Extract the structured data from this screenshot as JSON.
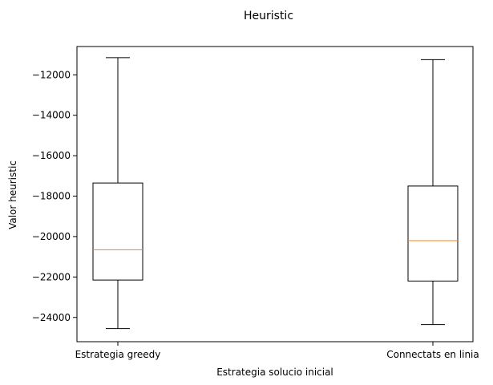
{
  "chart_data": {
    "type": "box",
    "title": "Heuristic",
    "xlabel": "Estrategia solucio inicial",
    "ylabel": "Valor heuristic",
    "ylim": [
      -25200,
      -10600
    ],
    "yticks": [
      -24000,
      -22000,
      -20000,
      -18000,
      -16000,
      -14000,
      -12000
    ],
    "ytick_labels": [
      "−24000",
      "−22000",
      "−20000",
      "−18000",
      "−16000",
      "−14000",
      "−12000"
    ],
    "categories": [
      "Estrategia greedy",
      "Connectats en linia"
    ],
    "boxes": [
      {
        "label": "Estrategia greedy",
        "whislo": -24550,
        "q1": -22150,
        "median": -20650,
        "q3": -17350,
        "whishi": -11150
      },
      {
        "label": "Connectats en linia",
        "whislo": -24350,
        "q1": -22200,
        "median": -20200,
        "q3": -17500,
        "whishi": -11250
      }
    ],
    "grid": false,
    "colors": {
      "box": "#000000",
      "median": "#ff7f0e"
    }
  }
}
